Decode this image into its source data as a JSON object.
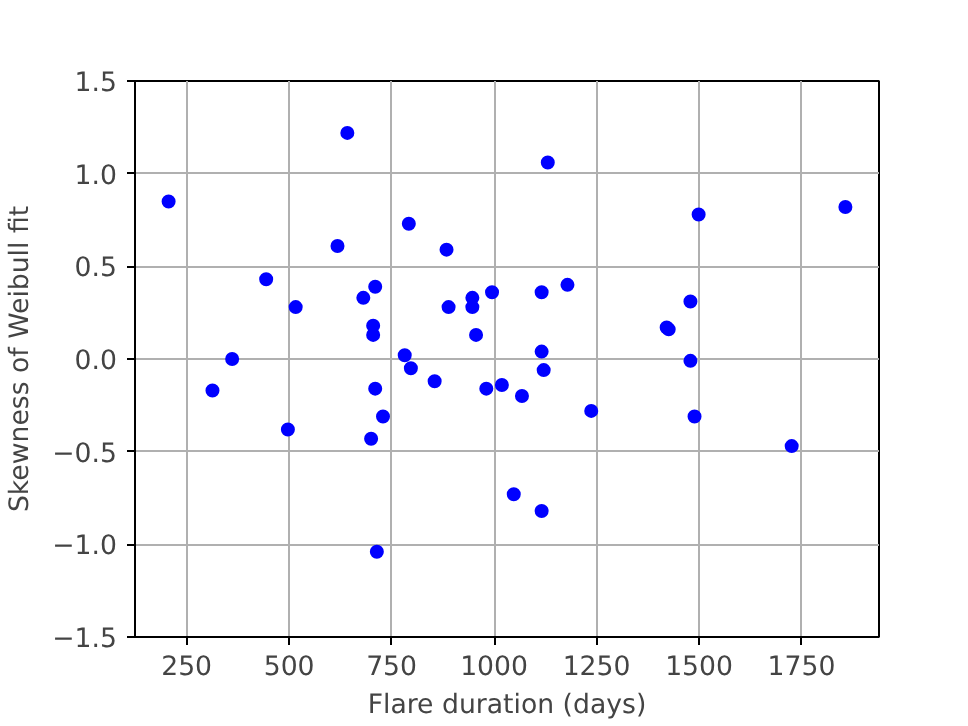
{
  "chart_data": {
    "type": "scatter",
    "xlabel": "Flare duration (days)",
    "ylabel": "Skewness of Weibull fit",
    "x": [
      206,
      313,
      361,
      444,
      497,
      516,
      618,
      642,
      681,
      705,
      705,
      700,
      710,
      710,
      714,
      729,
      782,
      797,
      792,
      855,
      884,
      889,
      947,
      947,
      956,
      981,
      995,
      1019,
      1048,
      1068,
      1116,
      1116,
      1121,
      1116,
      1131,
      1179,
      1237,
      1421,
      1426,
      1479,
      1479,
      1489,
      1499,
      1726,
      1857
    ],
    "values": [
      0.85,
      -0.17,
      0.0,
      0.43,
      -0.38,
      0.28,
      0.61,
      1.22,
      0.33,
      0.18,
      0.13,
      -0.43,
      0.39,
      -0.16,
      -1.04,
      -0.31,
      0.02,
      -0.05,
      0.73,
      -0.12,
      0.59,
      0.28,
      0.33,
      0.28,
      0.13,
      -0.16,
      0.36,
      -0.14,
      -0.73,
      -0.2,
      0.36,
      0.04,
      -0.06,
      -0.82,
      1.06,
      0.4,
      -0.28,
      0.17,
      0.16,
      0.31,
      -0.01,
      -0.31,
      0.78,
      -0.47,
      0.82
    ],
    "color": "#0000ff",
    "marker": "circle",
    "grid": true,
    "xlim": [
      124,
      1939
    ],
    "ylim": [
      -1.5,
      1.5
    ],
    "xticks": [
      250,
      500,
      750,
      1000,
      1250,
      1500,
      1750
    ],
    "yticks": [
      {
        "value": -1.5,
        "label": "−1.5"
      },
      {
        "value": -1.0,
        "label": "−1.0"
      },
      {
        "value": -0.5,
        "label": "−0.5"
      },
      {
        "value": 0,
        "label": "0.0"
      },
      {
        "value": 0.5,
        "label": "0.5"
      },
      {
        "value": 1.0,
        "label": "1.0"
      },
      {
        "value": 1.5,
        "label": "1.5"
      }
    ]
  }
}
